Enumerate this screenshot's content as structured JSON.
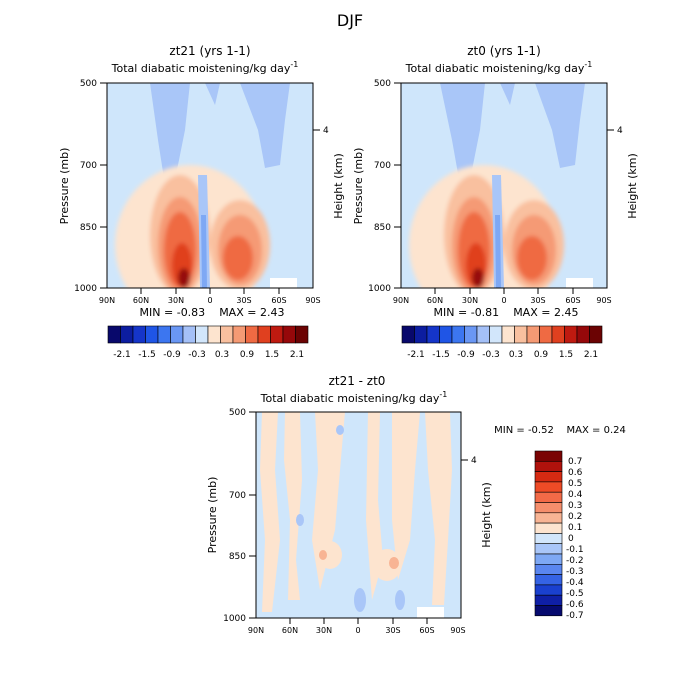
{
  "figure_title": "DJF",
  "colors": {
    "frame": "#000000",
    "background": "#cfe6fb"
  },
  "chart_data": [
    {
      "id": "panel1",
      "type": "heatmap",
      "title": "zt21 (yrs 1-1)",
      "subtitle": "Total diabatic moistening/kg day",
      "subtitle_exponent": "-1",
      "xlabel": "",
      "ylabel": "Pressure (mb)",
      "ylabel_right": "Height (km)",
      "x_ticks": [
        "90N",
        "60N",
        "30N",
        "0",
        "30S",
        "60S",
        "90S"
      ],
      "y_ticks": [
        "500",
        "700",
        "850",
        "1000"
      ],
      "y_ticks_right": [
        "4"
      ],
      "xlim": [
        90,
        -90
      ],
      "ylim": [
        1000,
        500
      ],
      "min_label": "MIN =",
      "min_value": "-0.83",
      "max_label": "MAX =",
      "max_value": "2.43",
      "colorbar": {
        "orientation": "horizontal",
        "tick_labels": [
          "-2.1",
          "-1.5",
          "-0.9",
          "-0.3",
          "0.3",
          "0.9",
          "1.5",
          "2.1"
        ],
        "levels": [
          -2.1,
          -1.8,
          -1.5,
          -1.2,
          -0.9,
          -0.6,
          -0.3,
          0,
          0.3,
          0.6,
          0.9,
          1.2,
          1.5,
          1.8,
          2.1
        ],
        "colors": [
          "#08086b",
          "#0c1da0",
          "#1535c9",
          "#1f55e6",
          "#3c76f0",
          "#6a97f4",
          "#a4c0f7",
          "#d2e6fb",
          "#fde4cf",
          "#f9c09f",
          "#f59a74",
          "#ef6a43",
          "#e0401f",
          "#bf1a10",
          "#96080a",
          "#6b0303"
        ]
      },
      "features": [
        {
          "lat": 20,
          "p": 850,
          "value": 1.8
        },
        {
          "lat": 25,
          "p": 960,
          "value": 2.4
        },
        {
          "lat": -25,
          "p": 880,
          "value": 1.5
        },
        {
          "lat": 0,
          "p": 900,
          "value": -0.8
        },
        {
          "lat": 45,
          "p": 600,
          "value": -0.3
        },
        {
          "lat": -30,
          "p": 600,
          "value": -0.3
        }
      ]
    },
    {
      "id": "panel2",
      "type": "heatmap",
      "title": "zt0 (yrs 1-1)",
      "subtitle": "Total diabatic moistening/kg day",
      "subtitle_exponent": "-1",
      "xlabel": "",
      "ylabel": "Pressure (mb)",
      "ylabel_right": "Height (km)",
      "x_ticks": [
        "90N",
        "60N",
        "30N",
        "0",
        "30S",
        "60S",
        "90S"
      ],
      "y_ticks": [
        "500",
        "700",
        "850",
        "1000"
      ],
      "y_ticks_right": [
        "4"
      ],
      "xlim": [
        90,
        -90
      ],
      "ylim": [
        1000,
        500
      ],
      "min_label": "MIN =",
      "min_value": "-0.81",
      "max_label": "MAX =",
      "max_value": "2.45",
      "colorbar": {
        "orientation": "horizontal",
        "tick_labels": [
          "-2.1",
          "-1.5",
          "-0.9",
          "-0.3",
          "0.3",
          "0.9",
          "1.5",
          "2.1"
        ],
        "levels": [
          -2.1,
          -1.8,
          -1.5,
          -1.2,
          -0.9,
          -0.6,
          -0.3,
          0,
          0.3,
          0.6,
          0.9,
          1.2,
          1.5,
          1.8,
          2.1
        ],
        "colors": [
          "#08086b",
          "#0c1da0",
          "#1535c9",
          "#1f55e6",
          "#3c76f0",
          "#6a97f4",
          "#a4c0f7",
          "#d2e6fb",
          "#fde4cf",
          "#f9c09f",
          "#f59a74",
          "#ef6a43",
          "#e0401f",
          "#bf1a10",
          "#96080a",
          "#6b0303"
        ]
      },
      "features": [
        {
          "lat": 20,
          "p": 850,
          "value": 1.8
        },
        {
          "lat": 25,
          "p": 960,
          "value": 2.45
        },
        {
          "lat": -25,
          "p": 880,
          "value": 1.5
        },
        {
          "lat": 0,
          "p": 900,
          "value": -0.8
        },
        {
          "lat": 45,
          "p": 600,
          "value": -0.3
        },
        {
          "lat": -30,
          "p": 600,
          "value": -0.3
        }
      ]
    },
    {
      "id": "panel3",
      "type": "heatmap",
      "title": "zt21 - zt0",
      "subtitle": "Total diabatic moistening/kg day",
      "subtitle_exponent": "-1",
      "xlabel": "",
      "ylabel": "Pressure (mb)",
      "ylabel_right": "Height (km)",
      "x_ticks": [
        "90N",
        "60N",
        "30N",
        "0",
        "30S",
        "60S",
        "90S"
      ],
      "y_ticks": [
        "500",
        "700",
        "850",
        "1000"
      ],
      "y_ticks_right": [
        "4"
      ],
      "xlim": [
        90,
        -90
      ],
      "ylim": [
        1000,
        500
      ],
      "min_label": "MIN =",
      "min_value": "-0.52",
      "max_label": "MAX =",
      "max_value": "0.24",
      "colorbar": {
        "orientation": "vertical",
        "tick_labels": [
          "0.7",
          "0.6",
          "0.5",
          "0.4",
          "0.3",
          "0.2",
          "0.1",
          "0",
          "-0.1",
          "-0.2",
          "-0.3",
          "-0.4",
          "-0.5",
          "-0.6",
          "-0.7"
        ],
        "levels": [
          0.7,
          0.6,
          0.5,
          0.4,
          0.3,
          0.2,
          0.1,
          0,
          -0.1,
          -0.2,
          -0.3,
          -0.4,
          -0.5,
          -0.6,
          -0.7
        ],
        "colors": [
          "#7a0303",
          "#b0120c",
          "#d62a12",
          "#ee4b26",
          "#f26a47",
          "#f58e6c",
          "#f8b494",
          "#fde4cf",
          "#d2e6fb",
          "#a9c6f8",
          "#7ea8f4",
          "#5a86ef",
          "#3563e4",
          "#1a40cf",
          "#0f1fa6",
          "#060a6f"
        ]
      },
      "features": [
        {
          "lat": 30,
          "p": 850,
          "value": 0.1
        },
        {
          "lat": -30,
          "p": 850,
          "value": 0.2
        },
        {
          "lat": 0,
          "p": 700,
          "value": -0.1
        },
        {
          "lat": 75,
          "p": 700,
          "value": 0.05
        }
      ]
    }
  ]
}
